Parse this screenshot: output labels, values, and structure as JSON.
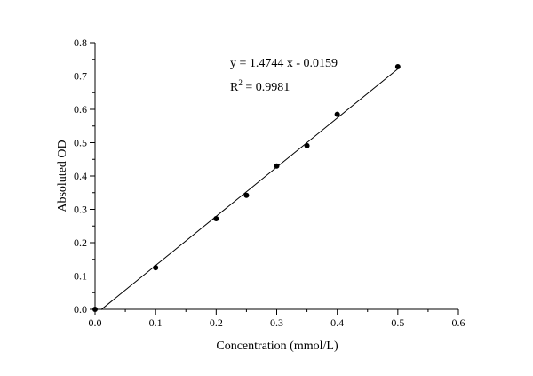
{
  "chart_data": {
    "type": "scatter",
    "title": "",
    "xlabel": "Concentration (mmol/L)",
    "ylabel": "Absoluted OD",
    "xlim": [
      0,
      0.6
    ],
    "ylim": [
      0,
      0.8
    ],
    "x_ticks": [
      "0.0",
      "0.1",
      "0.2",
      "0.3",
      "0.4",
      "0.5",
      "0.6"
    ],
    "y_ticks": [
      "0.0",
      "0.1",
      "0.2",
      "0.3",
      "0.4",
      "0.5",
      "0.6",
      "0.7",
      "0.8"
    ],
    "grid": false,
    "series": [
      {
        "x": [
          0,
          0.1,
          0.2,
          0.25,
          0.3,
          0.35,
          0.4,
          0.5
        ],
        "y": [
          0.0,
          0.125,
          0.272,
          0.342,
          0.43,
          0.491,
          0.585,
          0.728
        ]
      }
    ],
    "fit_line": {
      "slope": 1.4744,
      "intercept": -0.0159,
      "x_range": [
        0.01,
        0.5
      ]
    },
    "annotations": {
      "equation": "y = 1.4744 x - 0.0159",
      "r2_label": "R",
      "r2_sup": "2",
      "r2_value": " = 0.9981"
    }
  }
}
